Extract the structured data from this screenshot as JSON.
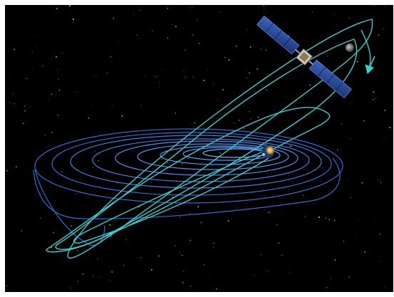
{
  "image": {
    "subject": "spacecraft-orbit-illustration",
    "colors": {
      "background": "#000000",
      "frame": "#ffffff",
      "transfer_orbit": "#35d0d0",
      "spiral_orbit": "#2a6fd6",
      "spiral_orbit_bright": "#4fa0ff",
      "solar_panel": "#2b4f9a",
      "moon": "#8a8a8a",
      "earth": "#d9a441"
    },
    "icons": [
      "spacecraft-icon",
      "moon-icon",
      "earth-icon",
      "direction-arrow-icon"
    ]
  }
}
